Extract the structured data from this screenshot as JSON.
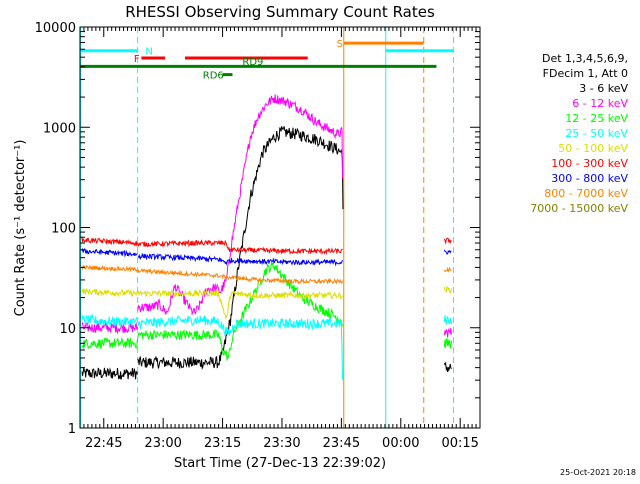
{
  "chart_data": {
    "type": "line",
    "title": "RHESSI Observing Summary Count Rates",
    "xlabel": "Start Time (27-Dec-13 22:39:02)",
    "ylabel": "Count Rate (s⁻¹ detector⁻¹)",
    "yscale": "log",
    "ylim": [
      1,
      10000
    ],
    "xlim_minutes_after_2239": [
      0,
      101
    ],
    "x_ticks": [
      {
        "label": "22:45",
        "t": 6
      },
      {
        "label": "23:00",
        "t": 21
      },
      {
        "label": "23:15",
        "t": 36
      },
      {
        "label": "23:30",
        "t": 51
      },
      {
        "label": "23:45",
        "t": 66
      },
      {
        "label": "00:00",
        "t": 81
      },
      {
        "label": "00:15",
        "t": 96
      }
    ],
    "y_ticks": [
      {
        "label": "1",
        "v": 1
      },
      {
        "label": "10",
        "v": 10
      },
      {
        "label": "100",
        "v": 100
      },
      {
        "label": "1000",
        "v": 1000
      },
      {
        "label": "10000",
        "v": 10000
      }
    ],
    "legend": {
      "position": "right",
      "header": [
        "Det 1,3,4,5,6,9,",
        "FDecim 1, Att 0"
      ],
      "entries": [
        {
          "label": "3 - 6 keV",
          "color": "#000000"
        },
        {
          "label": "6 - 12 keV",
          "color": "#ff00ff"
        },
        {
          "label": "12 - 25 keV",
          "color": "#00ff00"
        },
        {
          "label": "25 - 50 keV",
          "color": "#00ffff"
        },
        {
          "label": "50 - 100 keV",
          "color": "#dddd00"
        },
        {
          "label": "100 - 300 keV",
          "color": "#ff0000"
        },
        {
          "label": "300 - 800 keV",
          "color": "#0000ff"
        },
        {
          "label": "800 - 7000 keV",
          "color": "#ff8000"
        },
        {
          "label": "7000 - 15000 keV",
          "color": "#808000"
        }
      ]
    },
    "series": [
      {
        "name": "3 - 6 keV",
        "color": "#000000",
        "noise": 0.06,
        "segments": [
          [
            [
              0.5,
              3.5
            ],
            [
              14.5,
              3.5
            ]
          ],
          [
            [
              14.6,
              4.5
            ],
            [
              35,
              4.5
            ],
            [
              36,
              5.5
            ],
            [
              38,
              12
            ],
            [
              40,
              40
            ],
            [
              43,
              200
            ],
            [
              46,
              550
            ],
            [
              49,
              800
            ],
            [
              51,
              900
            ],
            [
              55,
              850
            ],
            [
              60,
              750
            ],
            [
              65,
              600
            ],
            [
              66.3,
              550
            ],
            [
              66.4,
              150
            ]
          ],
          [
            [
              92,
              4
            ],
            [
              93.8,
              4
            ]
          ]
        ]
      },
      {
        "name": "6 - 12 keV",
        "color": "#ff00ff",
        "noise": 0.05,
        "segments": [
          [
            [
              0.5,
              10
            ],
            [
              14.5,
              10
            ]
          ],
          [
            [
              14.6,
              16
            ],
            [
              18,
              16
            ],
            [
              20,
              17
            ],
            [
              22,
              14
            ],
            [
              24,
              26
            ],
            [
              26,
              20
            ],
            [
              28,
              15
            ],
            [
              29,
              14
            ],
            [
              30,
              16
            ],
            [
              32,
              24
            ],
            [
              34,
              25
            ],
            [
              35.5,
              23
            ],
            [
              37,
              30
            ],
            [
              38,
              60
            ],
            [
              40,
              180
            ],
            [
              43,
              800
            ],
            [
              45,
              1300
            ],
            [
              47,
              1700
            ],
            [
              49,
              1950
            ],
            [
              52,
              1800
            ],
            [
              56,
              1500
            ],
            [
              60,
              1100
            ],
            [
              64,
              900
            ],
            [
              65,
              850
            ],
            [
              66.2,
              900
            ],
            [
              66.3,
              300
            ]
          ],
          [
            [
              92,
              9
            ],
            [
              93.8,
              9
            ]
          ]
        ]
      },
      {
        "name": "12 - 25 keV",
        "color": "#00ff00",
        "noise": 0.05,
        "segments": [
          [
            [
              0.5,
              7
            ],
            [
              14.5,
              7
            ]
          ],
          [
            [
              14.6,
              8.5
            ],
            [
              33,
              8.5
            ],
            [
              35,
              8.5
            ],
            [
              36,
              6
            ],
            [
              37.5,
              5
            ],
            [
              38.5,
              8
            ],
            [
              39.5,
              10
            ],
            [
              41,
              13
            ],
            [
              44,
              22
            ],
            [
              47,
              38
            ],
            [
              49,
              42
            ],
            [
              52,
              30
            ],
            [
              56,
              20
            ],
            [
              60,
              16
            ],
            [
              63,
              14
            ],
            [
              66,
              12
            ],
            [
              66.3,
              10
            ]
          ],
          [
            [
              92,
              7
            ],
            [
              93.8,
              7
            ]
          ]
        ]
      },
      {
        "name": "25 - 50 keV",
        "color": "#00ffff",
        "noise": 0.05,
        "segments": [
          [
            [
              0.5,
              12
            ],
            [
              8,
              11.5
            ],
            [
              14.5,
              11.5
            ]
          ],
          [
            [
              14.6,
              11
            ],
            [
              22,
              11.5
            ],
            [
              30,
              12
            ],
            [
              35,
              11.5
            ],
            [
              37,
              9
            ],
            [
              38,
              9
            ],
            [
              39,
              11
            ],
            [
              45,
              11
            ],
            [
              52,
              11
            ],
            [
              60,
              11
            ],
            [
              66,
              11
            ],
            [
              66.3,
              3
            ]
          ],
          [
            [
              92,
              12
            ],
            [
              93.8,
              12
            ]
          ]
        ]
      },
      {
        "name": "50 - 100 keV",
        "color": "#dddd00",
        "noise": 0.03,
        "segments": [
          [
            [
              0.5,
              23
            ],
            [
              14.5,
              22
            ]
          ],
          [
            [
              14.6,
              22
            ],
            [
              30,
              22
            ],
            [
              35,
              22
            ],
            [
              37,
              12
            ],
            [
              38,
              22
            ],
            [
              45,
              21
            ],
            [
              55,
              21
            ],
            [
              66.3,
              21
            ]
          ],
          [
            [
              92,
              24
            ],
            [
              93.8,
              24
            ]
          ]
        ]
      },
      {
        "name": "100 - 300 keV",
        "color": "#ff0000",
        "noise": 0.025,
        "segments": [
          [
            [
              0.5,
              75
            ],
            [
              14.5,
              70
            ]
          ],
          [
            [
              14.6,
              68
            ],
            [
              30,
              70
            ],
            [
              37,
              70
            ],
            [
              37.5,
              60
            ],
            [
              45,
              59
            ],
            [
              55,
              58
            ],
            [
              66.3,
              58
            ]
          ],
          [
            [
              92,
              74
            ],
            [
              93.8,
              74
            ]
          ]
        ]
      },
      {
        "name": "300 - 800 keV",
        "color": "#0000ff",
        "noise": 0.025,
        "segments": [
          [
            [
              0.5,
              58
            ],
            [
              8,
              56
            ],
            [
              14.5,
              54
            ]
          ],
          [
            [
              14.6,
              52
            ],
            [
              25,
              50
            ],
            [
              35,
              48
            ],
            [
              37,
              45
            ],
            [
              38,
              47
            ],
            [
              45,
              46
            ],
            [
              55,
              45
            ],
            [
              66.3,
              45
            ]
          ],
          [
            [
              92,
              57
            ],
            [
              93.8,
              57
            ]
          ]
        ]
      },
      {
        "name": "800 - 7000 keV",
        "color": "#ff8000",
        "noise": 0.02,
        "segments": [
          [
            [
              0.5,
              40
            ],
            [
              8,
              39
            ],
            [
              14.5,
              38
            ]
          ],
          [
            [
              14.6,
              37
            ],
            [
              25,
              35
            ],
            [
              35,
              33
            ],
            [
              37,
              32
            ],
            [
              45,
              30
            ],
            [
              55,
              29
            ],
            [
              66.3,
              29
            ]
          ],
          [
            [
              92,
              38
            ],
            [
              93.8,
              38
            ]
          ]
        ]
      },
      {
        "name": "7000 - 15000 keV",
        "color": "#808000",
        "noise": 0.0,
        "segments": []
      }
    ],
    "vertical_lines": [
      {
        "t": 0.15,
        "color": "#00ffff",
        "dash": false
      },
      {
        "t": 14.55,
        "color": "#00ffff",
        "dash": true
      },
      {
        "t": 66.6,
        "color": "#ff8000",
        "dash": false
      },
      {
        "t": 77.2,
        "color": "#00ffff",
        "dash": false
      },
      {
        "t": 86.8,
        "color": "#ff8000",
        "dash": true
      },
      {
        "t": 94.3,
        "color": "#00ffff",
        "dash": true
      }
    ],
    "flag_bars": [
      {
        "label": "N",
        "color": "#00ffff",
        "level": 5800,
        "thick": 3,
        "segments": [
          [
            0.2,
            14.5
          ],
          [
            77.2,
            94.3
          ]
        ]
      },
      {
        "label": "S",
        "color": "#ff8000",
        "level": 6900,
        "thick": 3,
        "segments": [
          [
            66.6,
            86.8
          ]
        ]
      },
      {
        "label": "F",
        "color": "#ff0000",
        "level": 4900,
        "thick": 3,
        "segments": [
          [
            15.5,
            21.5
          ],
          [
            26.5,
            57.5
          ]
        ]
      },
      {
        "label": "",
        "color": "#008000",
        "level": 4050,
        "thick": 3,
        "segments": [
          [
            0,
            90
          ]
        ]
      },
      {
        "label": "RD9",
        "color": "#008000",
        "level": 4100,
        "thick": 0,
        "segments": []
      },
      {
        "label": "RD6",
        "color": "#008000",
        "level": 3350,
        "thick": 3,
        "segments": [
          [
            36,
            38.5
          ]
        ]
      }
    ]
  },
  "footer": {
    "timestamp": "25-Oct-2021 20:18"
  }
}
